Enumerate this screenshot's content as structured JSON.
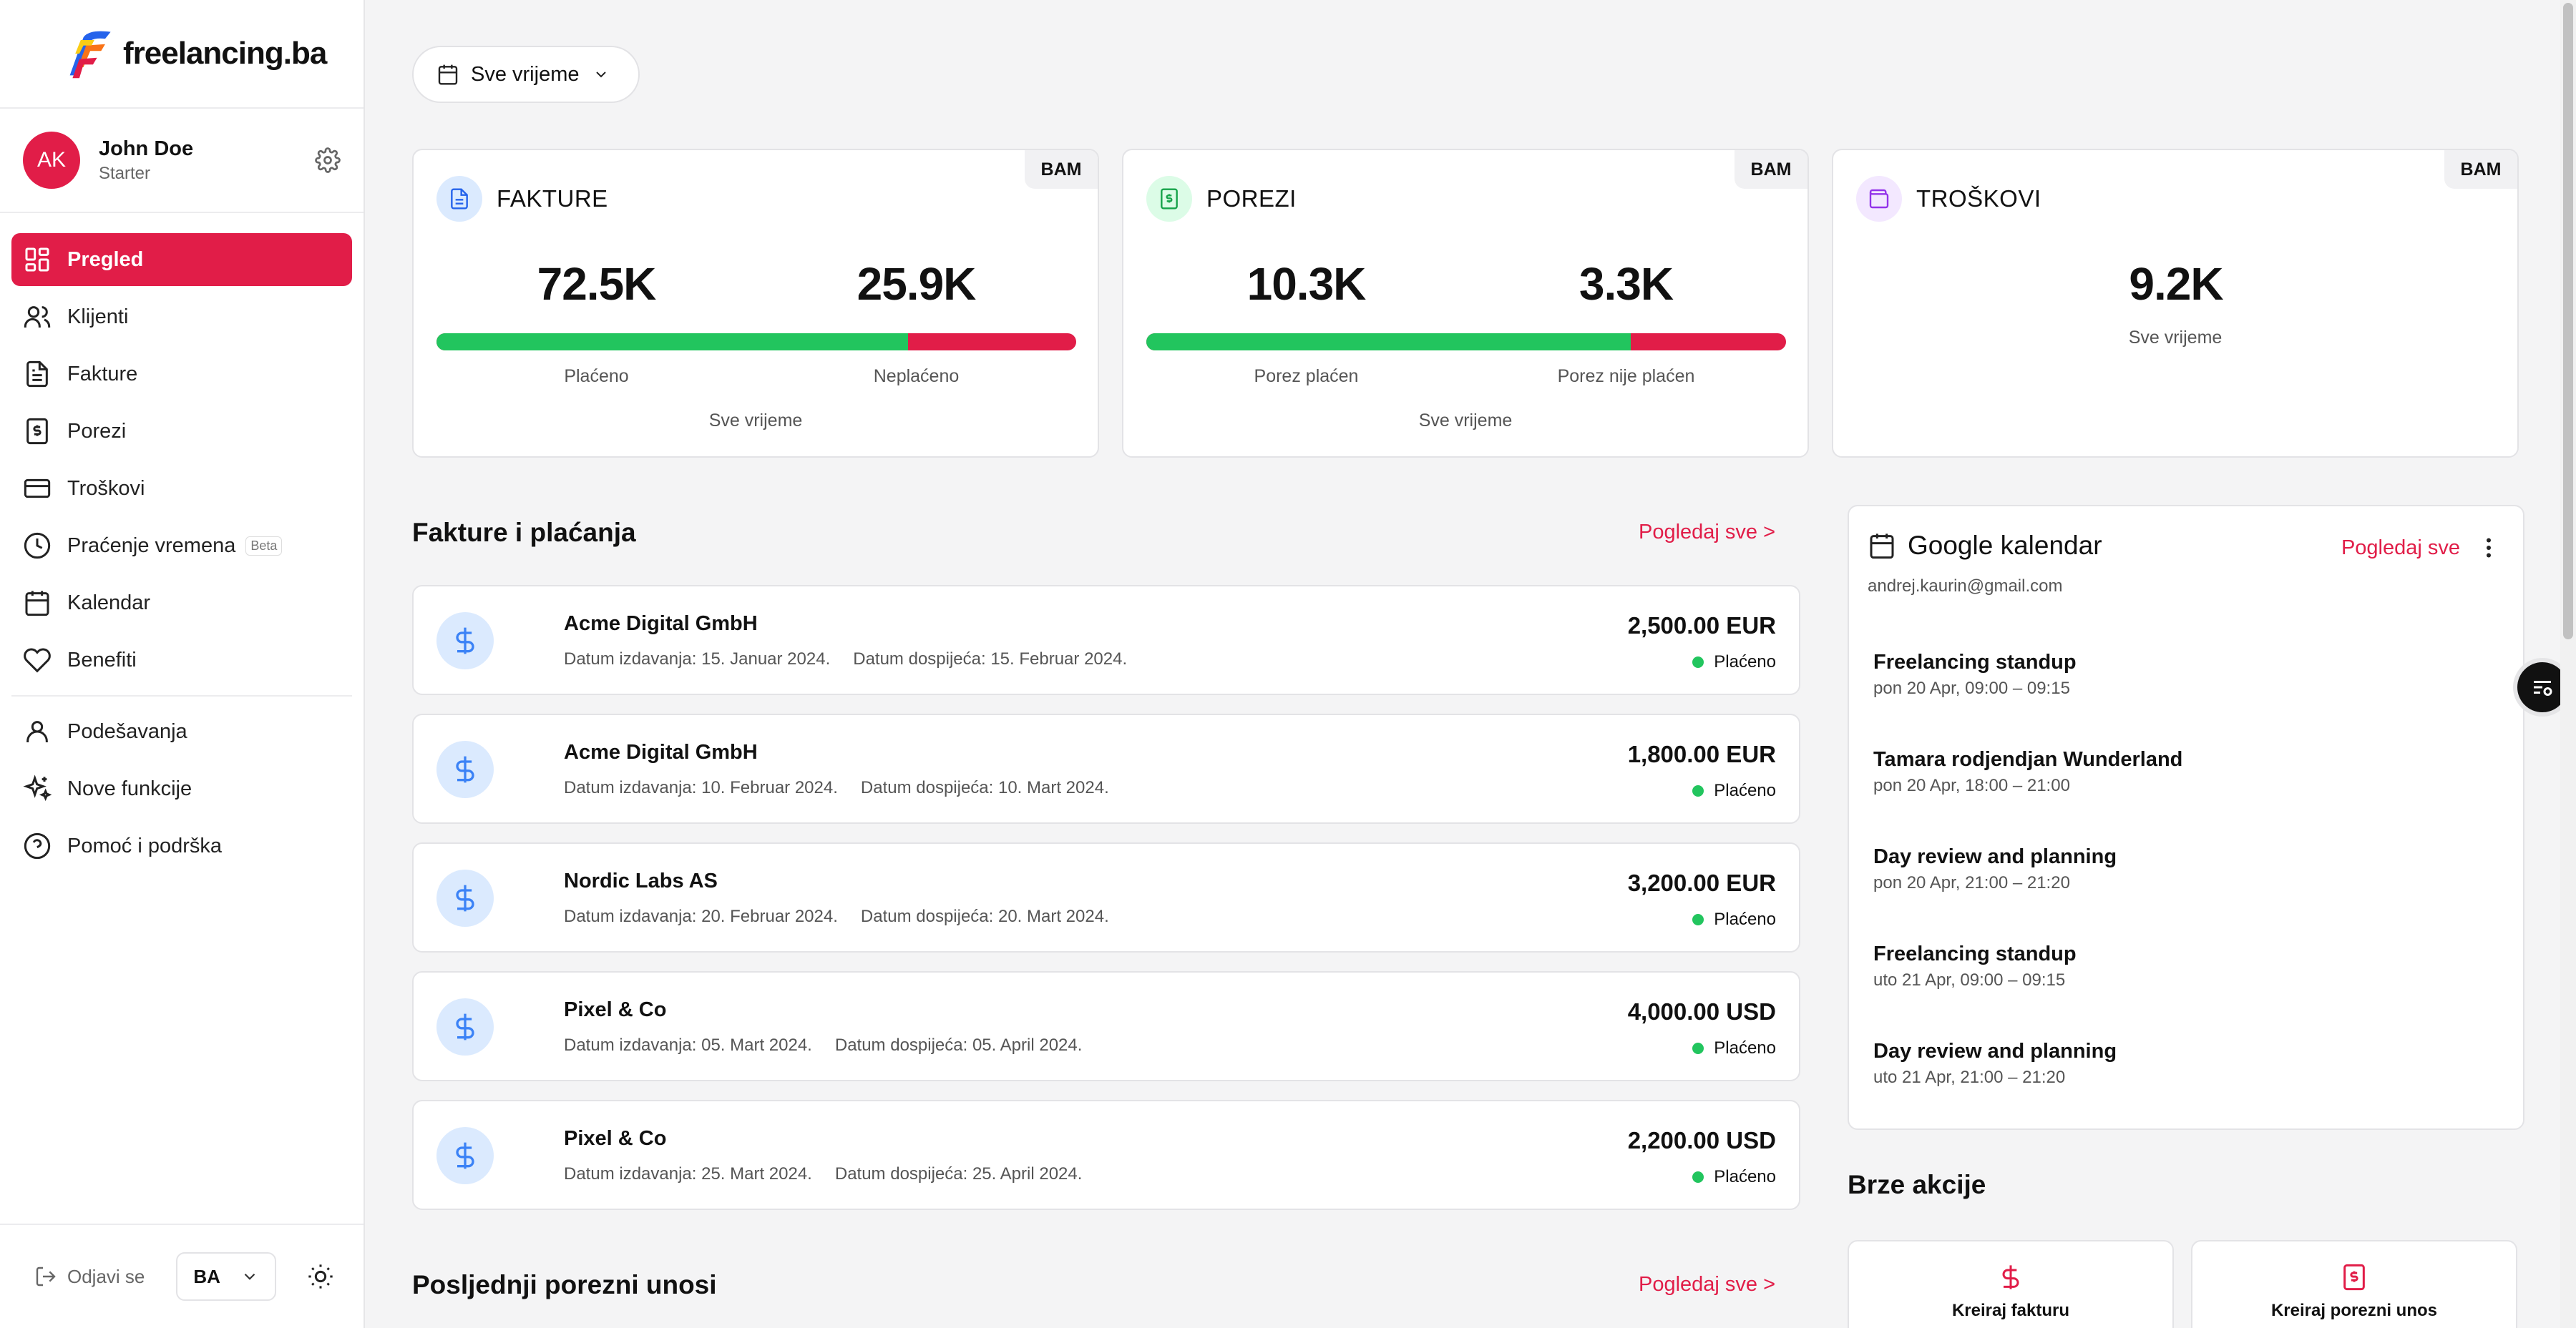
{
  "brand": {
    "name": "freelancing.ba"
  },
  "user": {
    "initials": "AK",
    "name": "John Doe",
    "plan": "Starter"
  },
  "nav": {
    "items": [
      {
        "label": "Pregled",
        "icon": "grid-icon",
        "active": true
      },
      {
        "label": "Klijenti",
        "icon": "users-icon"
      },
      {
        "label": "Fakture",
        "icon": "file-icon"
      },
      {
        "label": "Porezi",
        "icon": "tax-icon"
      },
      {
        "label": "Troškovi",
        "icon": "card-icon"
      },
      {
        "label": "Praćenje vremena",
        "icon": "clock-icon",
        "badge": "Beta"
      },
      {
        "label": "Kalendar",
        "icon": "calendar-icon"
      },
      {
        "label": "Benefiti",
        "icon": "heart-icon"
      }
    ],
    "secondary": [
      {
        "label": "Podešavanja",
        "icon": "user-icon"
      },
      {
        "label": "Nove funkcije",
        "icon": "sparkles-icon"
      },
      {
        "label": "Pomoć i podrška",
        "icon": "help-icon"
      }
    ]
  },
  "footer": {
    "logout": "Odjavi se",
    "language": "BA"
  },
  "filter": {
    "label": "Sve vrijeme"
  },
  "stats": {
    "fakture": {
      "title": "FAKTURE",
      "currency": "BAM",
      "paid": "72.5K",
      "unpaid": "25.9K",
      "paid_label": "Plaćeno",
      "unpaid_label": "Neplaćeno",
      "period": "Sve vrijeme",
      "paid_ratio": 0.737
    },
    "porezi": {
      "title": "POREZI",
      "currency": "BAM",
      "paid": "10.3K",
      "unpaid": "3.3K",
      "paid_label": "Porez plaćen",
      "unpaid_label": "Porez nije plaćen",
      "period": "Sve vrijeme",
      "paid_ratio": 0.757
    },
    "troskovi": {
      "title": "TROŠKOVI",
      "currency": "BAM",
      "value": "9.2K",
      "period": "Sve vrijeme"
    }
  },
  "invoices": {
    "title": "Fakture i plaćanja",
    "see_all": "Pogledaj sve >",
    "items": [
      {
        "client": "Acme Digital GmbH",
        "issued": "Datum izdavanja: 15. Januar 2024.",
        "due": "Datum dospijeća: 15. Februar 2024.",
        "amount": "2,500.00 EUR",
        "status": "Plaćeno"
      },
      {
        "client": "Acme Digital GmbH",
        "issued": "Datum izdavanja: 10. Februar 2024.",
        "due": "Datum dospijeća: 10. Mart 2024.",
        "amount": "1,800.00 EUR",
        "status": "Plaćeno"
      },
      {
        "client": "Nordic Labs AS",
        "issued": "Datum izdavanja: 20. Februar 2024.",
        "due": "Datum dospijeća: 20. Mart 2024.",
        "amount": "3,200.00 EUR",
        "status": "Plaćeno"
      },
      {
        "client": "Pixel & Co",
        "issued": "Datum izdavanja: 05. Mart 2024.",
        "due": "Datum dospijeća: 05. April 2024.",
        "amount": "4,000.00 USD",
        "status": "Plaćeno"
      },
      {
        "client": "Pixel & Co",
        "issued": "Datum izdavanja: 25. Mart 2024.",
        "due": "Datum dospijeća: 25. April 2024.",
        "amount": "2,200.00 USD",
        "status": "Plaćeno"
      }
    ]
  },
  "tax_entries": {
    "title": "Posljednji porezni unosi",
    "see_all": "Pogledaj sve >"
  },
  "calendar": {
    "title": "Google kalendar",
    "see_all": "Pogledaj sve",
    "email": "andrej.kaurin@gmail.com",
    "events": [
      {
        "title": "Freelancing standup",
        "time": "pon 20 Apr, 09:00 – 09:15"
      },
      {
        "title": "Tamara rodjendjan Wunderland",
        "time": "pon 20 Apr, 18:00 – 21:00"
      },
      {
        "title": "Day review and planning",
        "time": "pon 20 Apr, 21:00 – 21:20"
      },
      {
        "title": "Freelancing standup",
        "time": "uto 21 Apr, 09:00 – 09:15"
      },
      {
        "title": "Day review and planning",
        "time": "uto 21 Apr, 21:00 – 21:20"
      }
    ]
  },
  "quick_actions": {
    "title": "Brze akcije",
    "items": [
      {
        "label": "Kreiraj fakturu",
        "icon": "dollar-icon"
      },
      {
        "label": "Kreiraj porezni unos",
        "icon": "tax-icon"
      }
    ]
  },
  "colors": {
    "accent": "#e11d48",
    "paid": "#22c55e",
    "unpaid": "#e11d48"
  }
}
